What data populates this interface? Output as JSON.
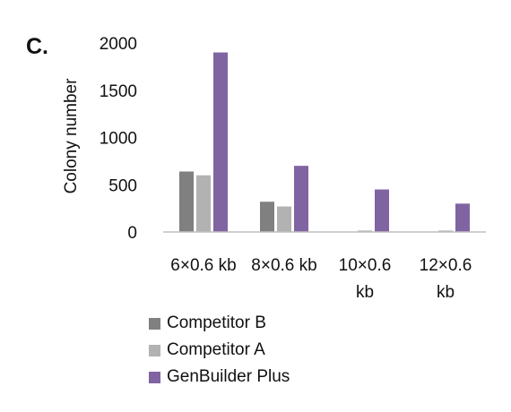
{
  "panel_label": "C.",
  "chart_data": {
    "type": "bar",
    "title": "",
    "xlabel": "",
    "ylabel": "Colony number",
    "ylim": [
      0,
      2000
    ],
    "yticks": [
      0,
      500,
      1000,
      1500,
      2000
    ],
    "categories": [
      [
        "6×0.6 kb"
      ],
      [
        "8×0.6 kb"
      ],
      [
        "10×0.6",
        "kb"
      ],
      [
        "12×0.6",
        "kb"
      ]
    ],
    "series": [
      {
        "name": "Competitor B",
        "color": "#808080",
        "values": [
          640,
          320,
          0,
          0
        ]
      },
      {
        "name": "Competitor A",
        "color": "#b2b2b2",
        "values": [
          600,
          270,
          15,
          15
        ]
      },
      {
        "name": "GenBuilder Plus",
        "color": "#8064a2",
        "values": [
          1900,
          700,
          450,
          300
        ]
      }
    ],
    "grid": false,
    "legend_position": "bottom"
  }
}
